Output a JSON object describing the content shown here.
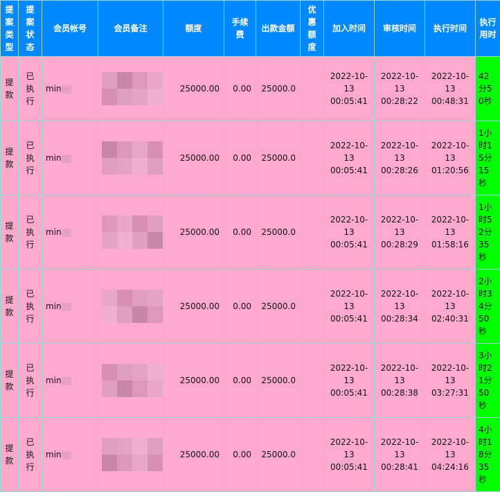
{
  "headers": [
    "提案类型",
    "提案状态",
    "会员帐号",
    "会员备注",
    "额度",
    "手续费",
    "出款金额",
    "优惠额度",
    "加入时间",
    "审核时间",
    "执行时间",
    "执行用时"
  ],
  "rows": [
    {
      "type": "提款",
      "status": "已执行",
      "account": "min",
      "note": "",
      "amount": "25000.00",
      "fee": "0.00",
      "payout": "25000.0",
      "bonus": "",
      "added": "2022-10-13 00:05:41",
      "reviewed": "2022-10-13 00:28:22",
      "executed": "2022-10-13 00:48:31",
      "duration": "42分50秒"
    },
    {
      "type": "提款",
      "status": "已执行",
      "account": "min",
      "note": "",
      "amount": "25000.00",
      "fee": "0.00",
      "payout": "25000.0",
      "bonus": "",
      "added": "2022-10-13 00:05:41",
      "reviewed": "2022-10-13 00:28:26",
      "executed": "2022-10-13 01:20:56",
      "duration": "1小时15分15秒"
    },
    {
      "type": "提款",
      "status": "已执行",
      "account": "min",
      "note": "",
      "amount": "25000.00",
      "fee": "0.00",
      "payout": "25000.0",
      "bonus": "",
      "added": "2022-10-13 00:05:41",
      "reviewed": "2022-10-13 00:28:29",
      "executed": "2022-10-13 01:58:16",
      "duration": "1小时52分35秒"
    },
    {
      "type": "提款",
      "status": "已执行",
      "account": "min",
      "note": "",
      "amount": "25000.00",
      "fee": "0.00",
      "payout": "25000.0",
      "bonus": "",
      "added": "2022-10-13 00:05:41",
      "reviewed": "2022-10-13 00:28:34",
      "executed": "2022-10-13 02:40:31",
      "duration": "2小时34分50秒"
    },
    {
      "type": "提款",
      "status": "已执行",
      "account": "min",
      "note": "",
      "amount": "25000.00",
      "fee": "0.00",
      "payout": "25000.0",
      "bonus": "",
      "added": "2022-10-13 00:05:41",
      "reviewed": "2022-10-13 00:28:38",
      "executed": "2022-10-13 03:27:31",
      "duration": "3小时21分50秒"
    },
    {
      "type": "提款",
      "status": "已执行",
      "account": "min",
      "note": "",
      "amount": "25000.00",
      "fee": "0.00",
      "payout": "25000.0",
      "bonus": "",
      "added": "2022-10-13 00:05:41",
      "reviewed": "2022-10-13 00:28:41",
      "executed": "2022-10-13 04:24:16",
      "duration": "4小时18分35秒"
    }
  ],
  "colors": {
    "header": "#0088ff",
    "row": "#ffaacc",
    "duration": "#00ff00"
  }
}
